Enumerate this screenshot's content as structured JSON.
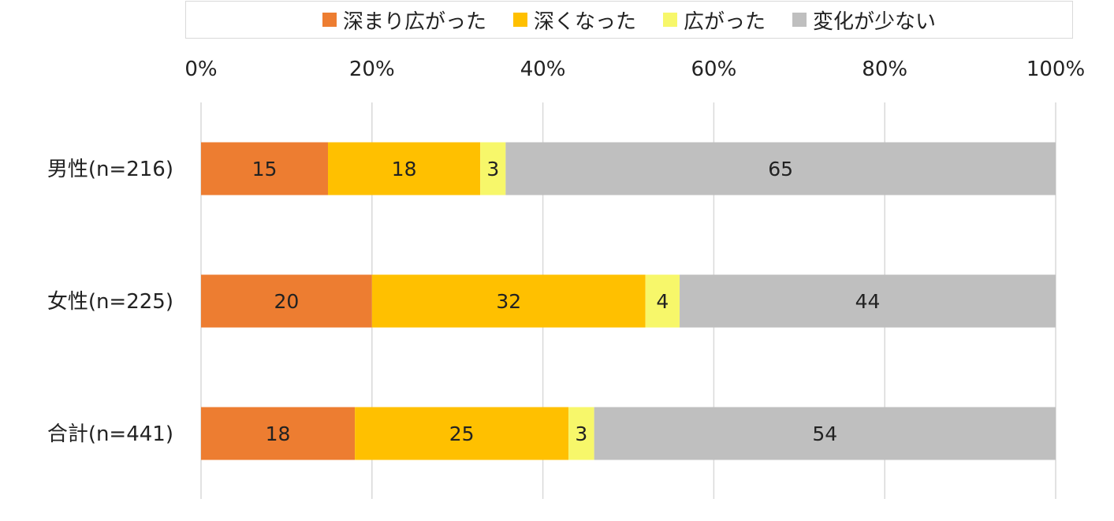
{
  "chart_data": {
    "type": "bar",
    "orientation": "horizontal",
    "stacked": "percent",
    "categories": [
      "男性(n=216)",
      "女性(n=225)",
      "合計(n=441)"
    ],
    "series": [
      {
        "name": "深まり広がった",
        "color": "#ED7D31",
        "values": [
          15,
          20,
          18
        ]
      },
      {
        "name": "深くなった",
        "color": "#FFC000",
        "values": [
          18,
          32,
          25
        ]
      },
      {
        "name": "広がった",
        "color": "#F7F76A",
        "values": [
          3,
          4,
          3
        ]
      },
      {
        "name": "変化が少ない",
        "color": "#BFBFBF",
        "values": [
          65,
          44,
          54
        ]
      }
    ],
    "x_ticks": [
      "0%",
      "20%",
      "40%",
      "60%",
      "80%",
      "100%"
    ],
    "xlim": [
      0,
      100
    ],
    "grid": true,
    "legend_position": "top"
  }
}
